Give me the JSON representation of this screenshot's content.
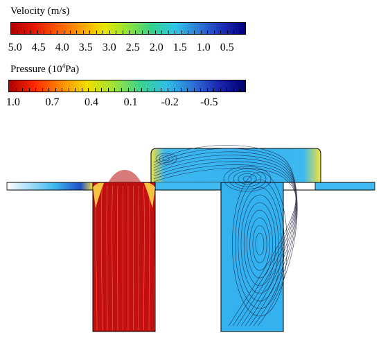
{
  "velocity_legend": {
    "title": "Velocity (m/s)",
    "ticks": [
      "5.0",
      "4.5",
      "4.0",
      "3.5",
      "3.0",
      "2.5",
      "2.0",
      "1.5",
      "1.0",
      "0.5"
    ],
    "colors": [
      "#b00000",
      "#e31a00",
      "#ff5a00",
      "#ff9f00",
      "#e8e800",
      "#8fe23a",
      "#35d08a",
      "#2ec6e8",
      "#2c7ad8",
      "#1d2fb8",
      "#000080"
    ]
  },
  "pressure_legend": {
    "title_main": "Pressure (10",
    "title_sup": "4",
    "title_tail": "Pa)",
    "ticks": [
      "1.0",
      "0.7",
      "0.4",
      "0.1",
      "-0.2",
      "-0.5"
    ],
    "colors": [
      "#b00000",
      "#ff2a00",
      "#ff8c00",
      "#f0e000",
      "#9ee23a",
      "#3bd48e",
      "#2ebfe6",
      "#2d72d6",
      "#1b25b0",
      "#000070"
    ]
  },
  "field_colors": {
    "left_chamber": "#c40f0f",
    "left_chamber_core": "#b80e0e",
    "channel": "#3fb9f0",
    "right_flow": "#33b2ef",
    "hot_edge": "#f4e23b",
    "cool_edge": "#1f52c8"
  }
}
